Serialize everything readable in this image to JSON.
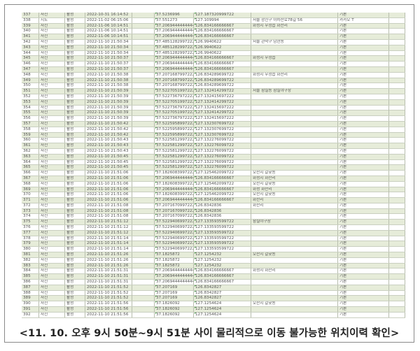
{
  "caption": "<11. 10. 오후 9시 50분~9시 51분 사이 물리적으로 이동 불가능한 위치이력 확인>",
  "colors": {
    "row_alt": "#e6ecd9",
    "grid": "#b8beae",
    "marker": "#2a8a2a"
  },
  "rows": [
    [
      "337",
      "사진",
      "활성",
      "2022-10-31 16:14:52",
      "37.5236996",
      "127.187320999722",
      "",
      "기본"
    ],
    [
      "338",
      "지도",
      "활성",
      "2022-11-02 06:15:06",
      "37.551273",
      "127.109994",
      "서울 광진구 아차산로78길 56",
      "카카오 T"
    ],
    [
      "339",
      "사진",
      "활성",
      "2022-11-06 10:14:51",
      "37.2069444444444",
      "126.834166666667",
      "화성시 우정읍 화산리",
      "기본"
    ],
    [
      "340",
      "사진",
      "활성",
      "2022-11-06 10:14:51",
      "37.2069444444444",
      "126.834166666667",
      "",
      "기본"
    ],
    [
      "341",
      "사진",
      "활성",
      "2022-11-06 10:14:51",
      "37.2069444444444",
      "126.834166666667",
      "",
      "기본"
    ],
    [
      "342",
      "사진",
      "활성",
      "2022-11-10 21:50:34",
      "37.4851282997222",
      "126.9940622",
      "서울 관악구 남현동",
      "기본"
    ],
    [
      "343",
      "사진",
      "활성",
      "2022-11-10 21:50:34",
      "37.4851282997222",
      "126.9940622",
      "",
      "기본"
    ],
    [
      "344",
      "사진",
      "활성",
      "2022-11-10 21:50:34",
      "37.4851282997222",
      "126.9940622",
      "",
      "기본"
    ],
    [
      "345",
      "사진",
      "활성",
      "2022-11-10 21:50:37",
      "37.2069444444444",
      "126.834166666667",
      "화성시 우정읍",
      "기본"
    ],
    [
      "346",
      "사진",
      "활성",
      "2022-11-10 21:50:37",
      "37.2069444444444",
      "126.834166666667",
      "",
      "기본"
    ],
    [
      "347",
      "사진",
      "활성",
      "2022-11-10 21:50:37",
      "37.2069444444444",
      "126.834166666667",
      "",
      "기본"
    ],
    [
      "348",
      "사진",
      "활성",
      "2022-11-10 21:50:38",
      "37.2071687997222",
      "126.834289699722",
      "화성시 우정읍 화산리",
      "기본"
    ],
    [
      "349",
      "사진",
      "활성",
      "2022-11-10 21:50:38",
      "37.2071687997222",
      "126.834289699722",
      "",
      "기본"
    ],
    [
      "350",
      "사진",
      "활성",
      "2022-11-10 21:50:38",
      "37.2071687997222",
      "126.834289699722",
      "",
      "기본"
    ],
    [
      "351",
      "사진",
      "활성",
      "2022-11-10 21:50:39",
      "37.5227051997222",
      "127.132414299722",
      "서울 잠실동 잠실야구장",
      "기본"
    ],
    [
      "352",
      "사진",
      "활성",
      "2022-11-10 21:50:39",
      "37.5227367972222",
      "127.132415697222",
      "",
      "기본"
    ],
    [
      "353",
      "사진",
      "활성",
      "2022-11-10 21:50:39",
      "37.5227051997222",
      "127.132414299722",
      "",
      "기본"
    ],
    [
      "354",
      "사진",
      "활성",
      "2022-11-10 21:50:39",
      "37.5227367972222",
      "127.132415697222",
      "",
      "기본"
    ],
    [
      "355",
      "사진",
      "활성",
      "2022-11-10 21:50:39",
      "37.5227051997222",
      "127.132414299722",
      "",
      "기본"
    ],
    [
      "356",
      "사진",
      "활성",
      "2022-11-10 21:50:39",
      "37.5227367972222",
      "127.132415697222",
      "",
      "기본"
    ],
    [
      "357",
      "사진",
      "활성",
      "2022-11-10 21:50:42",
      "37.5225958997222",
      "127.132307699722",
      "",
      "기본"
    ],
    [
      "358",
      "사진",
      "활성",
      "2022-11-10 21:50:42",
      "37.5225958997222",
      "127.132307699722",
      "",
      "기본"
    ],
    [
      "359",
      "사진",
      "활성",
      "2022-11-10 21:50:42",
      "37.5225958997222",
      "127.132307699722",
      "",
      "기본"
    ],
    [
      "360",
      "사진",
      "활성",
      "2022-11-10 21:50:43",
      "37.5225812997222",
      "127.132276099722",
      "",
      "기본"
    ],
    [
      "361",
      "사진",
      "활성",
      "2022-11-10 21:50:43",
      "37.5225812997222",
      "127.132276099722",
      "",
      "기본"
    ],
    [
      "362",
      "사진",
      "활성",
      "2022-11-10 21:50:43",
      "37.5225812997222",
      "127.132276099722",
      "",
      "기본"
    ],
    [
      "363",
      "사진",
      "활성",
      "2022-11-10 21:50:45",
      "37.5225812997222",
      "127.132276099722",
      "",
      "기본"
    ],
    [
      "364",
      "사진",
      "활성",
      "2022-11-10 21:50:45",
      "37.5225812997222",
      "127.132276099722",
      "",
      "기본"
    ],
    [
      "365",
      "사진",
      "활성",
      "2022-11-10 21:50:45",
      "37.5225812997222",
      "127.132276099722",
      "",
      "기본"
    ],
    [
      "366",
      "사진",
      "활성",
      "2022-11-10 21:51:06",
      "37.1826083997222",
      "127.125462099722",
      "오산시 갈곶동",
      "기본"
    ],
    [
      "367",
      "사진",
      "활성",
      "2022-11-10 21:51:06",
      "37.2069444444444",
      "126.834166666667",
      "화성시 화산리",
      "기본"
    ],
    [
      "368",
      "사진",
      "활성",
      "2022-11-10 21:51:06",
      "37.1826083997222",
      "127.125462099722",
      "오산시 갈곶동",
      "기본"
    ],
    [
      "369",
      "사진",
      "활성",
      "2022-11-10 21:51:06",
      "37.2069444444444",
      "126.834166666667",
      "화성 화산리",
      "기본"
    ],
    [
      "370",
      "사진",
      "활성",
      "2022-11-10 21:51:06",
      "37.1826083997222",
      "127.125462099722",
      "오산시 갈곶동",
      "기본"
    ],
    [
      "371",
      "사진",
      "활성",
      "2022-11-10 21:51:06",
      "37.2069444444444",
      "126.834166666667",
      "화산리",
      "기본"
    ],
    [
      "372",
      "사진",
      "활성",
      "2022-11-10 21:51:08",
      "37.2071670997222",
      "126.8342836",
      "화산리",
      "기본"
    ],
    [
      "373",
      "사진",
      "활성",
      "2022-11-10 21:51:08",
      "37.2071670997222",
      "126.8342836",
      "",
      "기본"
    ],
    [
      "374",
      "사진",
      "활성",
      "2022-11-10 21:51:08",
      "37.2071670997222",
      "126.8342836",
      "",
      "기본"
    ],
    [
      "375",
      "사진",
      "활성",
      "2022-11-10 21:51:12",
      "37.5229406997222",
      "127.133593599722",
      "잠실야구장",
      "기본"
    ],
    [
      "376",
      "사진",
      "활성",
      "2022-11-10 21:51:12",
      "37.5229406997222",
      "127.133593599722",
      "",
      "기본"
    ],
    [
      "377",
      "사진",
      "활성",
      "2022-11-10 21:51:12",
      "37.5229406997222",
      "127.133593599722",
      "",
      "기본"
    ],
    [
      "378",
      "사진",
      "활성",
      "2022-11-10 21:51:14",
      "37.5229406997222",
      "127.133593599722",
      "",
      "기본"
    ],
    [
      "379",
      "사진",
      "활성",
      "2022-11-10 21:51:14",
      "37.5229406997222",
      "127.133593599722",
      "",
      "기본"
    ],
    [
      "380",
      "사진",
      "활성",
      "2022-11-10 21:51:14",
      "37.5229406997222",
      "127.133593599722",
      "",
      "기본"
    ],
    [
      "381",
      "사진",
      "활성",
      "2022-11-10 21:51:26",
      "37.1825872",
      "127.1254232",
      "오산시 갈곶동",
      "기본"
    ],
    [
      "382",
      "사진",
      "활성",
      "2022-11-10 21:51:26",
      "37.1825872",
      "127.1254232",
      "",
      "기본"
    ],
    [
      "383",
      "사진",
      "활성",
      "2022-11-10 21:51:26",
      "37.1825872",
      "127.1254232",
      "",
      "기본"
    ],
    [
      "384",
      "사진",
      "활성",
      "2022-11-10 21:51:31",
      "37.2069444444444",
      "126.834166666667",
      "화성시 화산리",
      "기본"
    ],
    [
      "385",
      "사진",
      "활성",
      "2022-11-10 21:51:31",
      "37.2069444444444",
      "126.834166666667",
      "",
      "기본"
    ],
    [
      "386",
      "사진",
      "활성",
      "2022-11-10 21:51:31",
      "37.2069444444444",
      "126.834166666667",
      "",
      "기본"
    ],
    [
      "387",
      "사진",
      "활성",
      "2022-11-10 21:51:52",
      "37.207169",
      "126.8342827",
      "",
      "기본"
    ],
    [
      "388",
      "사진",
      "활성",
      "2022-11-10 21:51:52",
      "37.207169",
      "126.8342827",
      "",
      "기본"
    ],
    [
      "389",
      "사진",
      "활성",
      "2022-11-10 21:51:52",
      "37.207169",
      "126.8342827",
      "",
      "기본"
    ],
    [
      "390",
      "사진",
      "활성",
      "2022-11-10 21:51:56",
      "37.1826092",
      "127.1254624",
      "오산시 갈곶동",
      "기본"
    ],
    [
      "391",
      "사진",
      "활성",
      "2022-11-10 21:51:56",
      "37.1826092",
      "127.1254624",
      "",
      "기본"
    ],
    [
      "392",
      "사진",
      "활성",
      "2022-11-10 21:51:56",
      "37.1826092",
      "127.1254624",
      "",
      "기본"
    ]
  ]
}
